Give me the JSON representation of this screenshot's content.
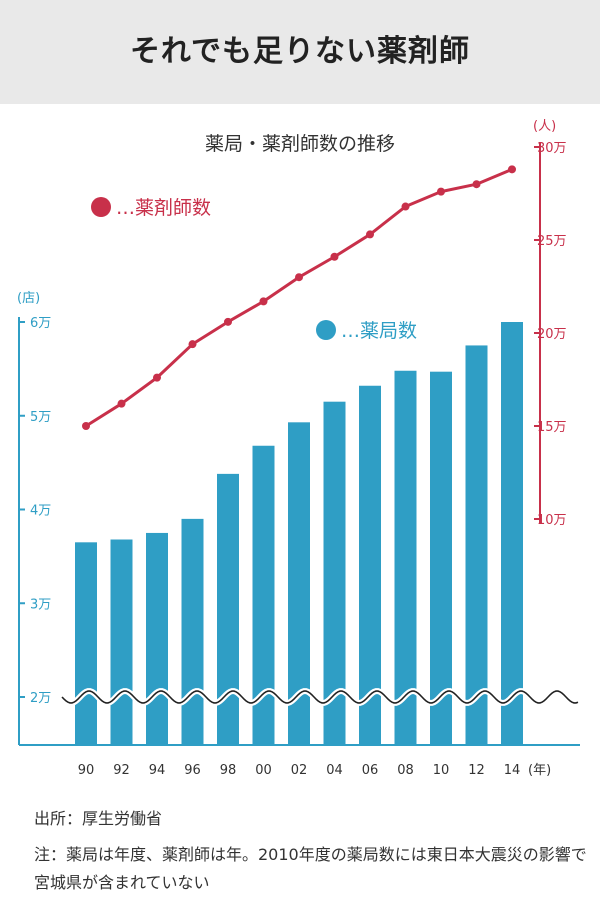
{
  "title": "それでも足りない薬剤師",
  "chart_data": {
    "type": "bar+line",
    "title": "薬局・薬剤師数の推移",
    "categories": [
      "90",
      "92",
      "94",
      "96",
      "98",
      "00",
      "02",
      "04",
      "06",
      "08",
      "10",
      "12",
      "14"
    ],
    "x_unit": "(年)",
    "series": [
      {
        "name": "…薬局数",
        "type": "bar",
        "axis": "left",
        "color": "#2f9ec5",
        "values": [
          36500,
          36800,
          37500,
          39000,
          43800,
          46800,
          49300,
          51500,
          53200,
          54800,
          54700,
          57500,
          60000
        ]
      },
      {
        "name": "…薬剤師数",
        "type": "line",
        "axis": "right",
        "color": "#c8304a",
        "values": [
          150000,
          162000,
          176000,
          194000,
          206000,
          217000,
          230000,
          241000,
          253000,
          268000,
          276000,
          280000,
          288000
        ]
      }
    ],
    "left_axis": {
      "unit": "(店)",
      "ticks": [
        {
          "value": 20000,
          "label": "2万"
        },
        {
          "value": 30000,
          "label": "3万"
        },
        {
          "value": 40000,
          "label": "4万"
        },
        {
          "value": 50000,
          "label": "5万"
        },
        {
          "value": 60000,
          "label": "6万"
        }
      ],
      "break_below": 20000,
      "color": "#2f9ec5"
    },
    "right_axis": {
      "unit": "(人)",
      "ticks": [
        {
          "value": 100000,
          "label": "10万"
        },
        {
          "value": 150000,
          "label": "15万"
        },
        {
          "value": 200000,
          "label": "20万"
        },
        {
          "value": 250000,
          "label": "25万"
        },
        {
          "value": 300000,
          "label": "30万"
        }
      ],
      "color": "#c8304a"
    },
    "legend": [
      {
        "label": "…薬剤師数",
        "color": "#c8304a"
      },
      {
        "label": "…薬局数",
        "color": "#2f9ec5"
      }
    ]
  },
  "footer": {
    "source": "出所：厚生労働省",
    "note": "注：薬局は年度、薬剤師は年。2010年度の薬局数には東日本大震災の影響で宮城県が含まれていない"
  }
}
